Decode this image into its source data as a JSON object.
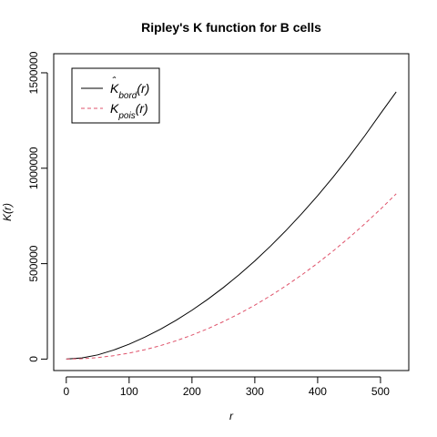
{
  "chart_data": {
    "type": "line",
    "title": "Ripley's K function for B cells",
    "xlabel": "r",
    "ylabel": "K(r)",
    "xlim": [
      -20,
      545
    ],
    "ylim": [
      -60000,
      1600000
    ],
    "x_ticks": [
      0,
      100,
      200,
      300,
      400,
      500
    ],
    "y_ticks": [
      0,
      500000,
      1000000,
      1500000
    ],
    "x_tick_labels": [
      "0",
      "100",
      "200",
      "300",
      "400",
      "500"
    ],
    "y_tick_labels": [
      "0",
      "500000",
      "1000000",
      "1500000"
    ],
    "grid": false,
    "legend_position": "top-left",
    "legend": [
      {
        "base": "K",
        "hat": true,
        "sub": "bord",
        "arg": "(r)",
        "color": "#000000",
        "dash": "solid"
      },
      {
        "base": "K",
        "hat": false,
        "sub": "pois",
        "arg": "(r)",
        "color": "#DF536B",
        "dash": "dashed"
      }
    ],
    "x": [
      0,
      25,
      50,
      75,
      100,
      125,
      150,
      175,
      200,
      225,
      250,
      275,
      300,
      325,
      350,
      375,
      400,
      425,
      450,
      475,
      500,
      525
    ],
    "series": [
      {
        "color": "#000000",
        "dash": "solid",
        "values": [
          0,
          6000,
          22000,
          47000,
          78000,
          115000,
          157000,
          204000,
          256000,
          313000,
          375000,
          442000,
          514000,
          592000,
          675000,
          763000,
          856000,
          955000,
          1060000,
          1170000,
          1286000,
          1400000
        ]
      },
      {
        "color": "#DF536B",
        "dash": "dashed",
        "values": [
          0,
          1963,
          7854,
          17671,
          31416,
          49087,
          70686,
          96211,
          125664,
          159043,
          196350,
          237583,
          282743,
          331831,
          384845,
          441786,
          502655,
          567450,
          636173,
          708822,
          785398,
          865901
        ]
      }
    ]
  }
}
